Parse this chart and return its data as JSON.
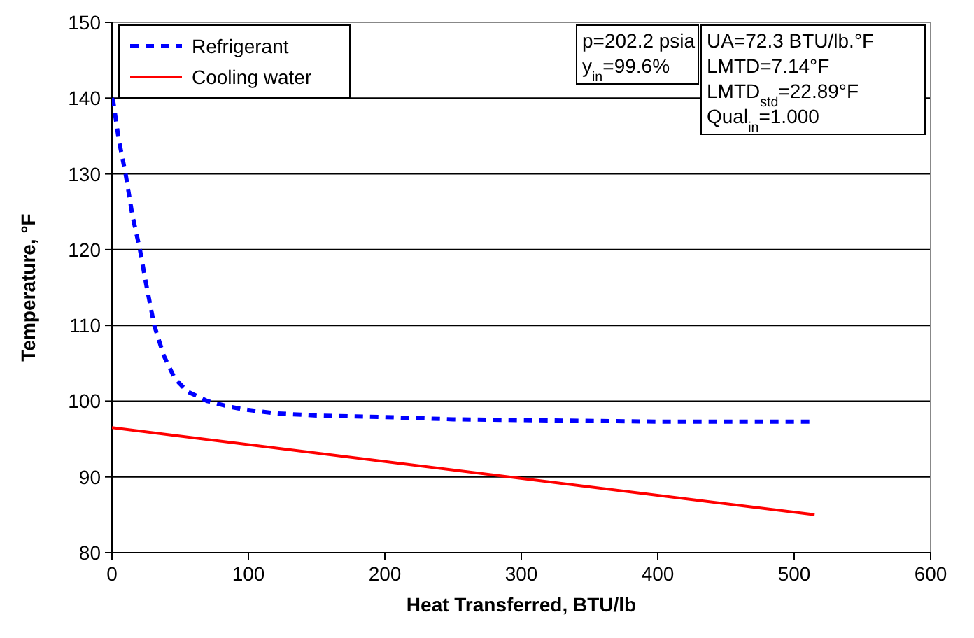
{
  "chart_data": {
    "type": "line",
    "xlabel": "Heat Transferred, BTU/lb",
    "ylabel": "Temperature, °F",
    "xlim": [
      0,
      600
    ],
    "xticks": [
      0,
      100,
      200,
      300,
      400,
      500,
      600
    ],
    "ylim": [
      80,
      150
    ],
    "yticks": [
      80,
      90,
      100,
      110,
      120,
      130,
      140,
      150
    ],
    "grid": "y",
    "legend": "top left",
    "marker": "none",
    "series": [
      {
        "name": "Refrigerant",
        "color": "#0000ff",
        "line_style": "dashed",
        "x": [
          0,
          1,
          5,
          10,
          15,
          20.5,
          25,
          31,
          38,
          46,
          55,
          70,
          85,
          97,
          120,
          150,
          200,
          250,
          300,
          400,
          515
        ],
        "values": [
          140,
          139.5,
          134.5,
          130,
          124.5,
          120,
          115.5,
          110,
          106,
          103,
          101.3,
          100,
          99.3,
          98.9,
          98.4,
          98.1,
          97.9,
          97.6,
          97.5,
          97.3,
          97.3
        ]
      },
      {
        "name": "Cooling water",
        "color": "#ff0000",
        "line_style": "solid",
        "x": [
          0,
          515
        ],
        "values": [
          96.5,
          85
        ]
      }
    ],
    "annotations": [
      "p=202.2 psia",
      "y$_{in}$=99.6%",
      "UA=72.3 BTU/lb.°F",
      "LMTD=7.14°F",
      "LMTD$_{std}$=22.89°F",
      "Qual$_{in}$=1.000"
    ]
  }
}
